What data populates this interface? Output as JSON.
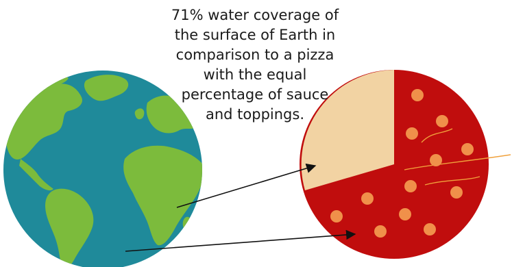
{
  "caption": {
    "lines": [
      "71% water coverage of",
      "the surface of Earth in",
      "comparison to a pizza",
      "with the equal",
      "percentage of sauce",
      "and toppings."
    ]
  },
  "earth": {
    "water_color": "#1f8a9a",
    "land_color": "#7cbb3c",
    "water_percent": 71
  },
  "pizza": {
    "sauce_color": "#c00d0d",
    "crust_color": "#f2d3a3",
    "topping_color": "#f0904a",
    "sauce_percent": 71
  },
  "arrow_color": "#111111"
}
